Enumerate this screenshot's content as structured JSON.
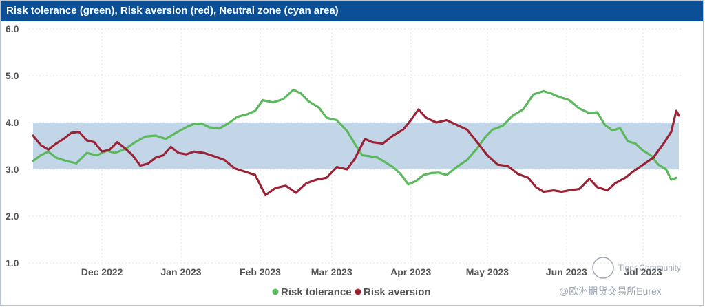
{
  "chart_data": {
    "type": "line",
    "title": "Risk tolerance (green), Risk aversion (red), Neutral zone (cyan area)",
    "xlabel": "",
    "ylabel": "",
    "ylim": [
      1.0,
      6.0
    ],
    "yticks": [
      "1.0",
      "2.0",
      "3.0",
      "4.0",
      "5.0",
      "6.0"
    ],
    "x_range_days": [
      0,
      253
    ],
    "xticks": [
      {
        "label": "Dec 2022",
        "day": 27
      },
      {
        "label": "Jan 2023",
        "day": 58
      },
      {
        "label": "Feb 2023",
        "day": 89
      },
      {
        "label": "Mar 2023",
        "day": 117
      },
      {
        "label": "Apr 2023",
        "day": 148
      },
      {
        "label": "May 2023",
        "day": 178
      },
      {
        "label": "Jun 2023",
        "day": 209
      },
      {
        "label": "Jul 2023",
        "day": 239
      }
    ],
    "neutral_zone": {
      "low": 3.0,
      "high": 4.0,
      "color": "#c2d6e8"
    },
    "series": [
      {
        "name": "Risk tolerance",
        "color": "#5cb85c",
        "points": [
          [
            0,
            3.18
          ],
          [
            3,
            3.3
          ],
          [
            6,
            3.38
          ],
          [
            9,
            3.25
          ],
          [
            13,
            3.18
          ],
          [
            17,
            3.13
          ],
          [
            21,
            3.35
          ],
          [
            25,
            3.3
          ],
          [
            29,
            3.4
          ],
          [
            32,
            3.35
          ],
          [
            36,
            3.43
          ],
          [
            40,
            3.58
          ],
          [
            44,
            3.7
          ],
          [
            48,
            3.72
          ],
          [
            52,
            3.65
          ],
          [
            56,
            3.78
          ],
          [
            60,
            3.9
          ],
          [
            63,
            3.97
          ],
          [
            66,
            3.98
          ],
          [
            69,
            3.9
          ],
          [
            73,
            3.87
          ],
          [
            77,
            4.0
          ],
          [
            80,
            4.12
          ],
          [
            84,
            4.18
          ],
          [
            87,
            4.25
          ],
          [
            90,
            4.48
          ],
          [
            94,
            4.43
          ],
          [
            98,
            4.5
          ],
          [
            102,
            4.7
          ],
          [
            105,
            4.62
          ],
          [
            108,
            4.45
          ],
          [
            112,
            4.32
          ],
          [
            115,
            4.1
          ],
          [
            119,
            4.05
          ],
          [
            123,
            3.82
          ],
          [
            126,
            3.55
          ],
          [
            129,
            3.3
          ],
          [
            132,
            3.28
          ],
          [
            135,
            3.25
          ],
          [
            138,
            3.15
          ],
          [
            141,
            3.05
          ],
          [
            144,
            2.9
          ],
          [
            147,
            2.68
          ],
          [
            150,
            2.75
          ],
          [
            153,
            2.88
          ],
          [
            156,
            2.92
          ],
          [
            159,
            2.93
          ],
          [
            162,
            2.88
          ],
          [
            166,
            3.05
          ],
          [
            170,
            3.2
          ],
          [
            174,
            3.45
          ],
          [
            177,
            3.68
          ],
          [
            180,
            3.85
          ],
          [
            184,
            3.93
          ],
          [
            188,
            4.15
          ],
          [
            192,
            4.28
          ],
          [
            196,
            4.6
          ],
          [
            200,
            4.67
          ],
          [
            203,
            4.62
          ],
          [
            206,
            4.55
          ],
          [
            210,
            4.48
          ],
          [
            214,
            4.3
          ],
          [
            218,
            4.2
          ],
          [
            221,
            4.22
          ],
          [
            224,
            3.95
          ],
          [
            227,
            3.83
          ],
          [
            230,
            3.88
          ],
          [
            233,
            3.6
          ],
          [
            236,
            3.55
          ],
          [
            239,
            3.4
          ],
          [
            242,
            3.3
          ],
          [
            245,
            3.1
          ],
          [
            248,
            3.0
          ],
          [
            250,
            2.78
          ],
          [
            252,
            2.82
          ]
        ]
      },
      {
        "name": "Risk aversion",
        "color": "#9b2335",
        "points": [
          [
            0,
            3.72
          ],
          [
            3,
            3.52
          ],
          [
            6,
            3.42
          ],
          [
            9,
            3.55
          ],
          [
            12,
            3.65
          ],
          [
            15,
            3.78
          ],
          [
            18,
            3.8
          ],
          [
            21,
            3.62
          ],
          [
            24,
            3.58
          ],
          [
            27,
            3.38
          ],
          [
            30,
            3.42
          ],
          [
            33,
            3.58
          ],
          [
            36,
            3.45
          ],
          [
            39,
            3.3
          ],
          [
            42,
            3.08
          ],
          [
            45,
            3.12
          ],
          [
            48,
            3.25
          ],
          [
            51,
            3.3
          ],
          [
            54,
            3.48
          ],
          [
            57,
            3.35
          ],
          [
            60,
            3.32
          ],
          [
            63,
            3.38
          ],
          [
            67,
            3.35
          ],
          [
            71,
            3.28
          ],
          [
            75,
            3.2
          ],
          [
            79,
            3.02
          ],
          [
            83,
            2.95
          ],
          [
            87,
            2.88
          ],
          [
            91,
            2.45
          ],
          [
            95,
            2.6
          ],
          [
            99,
            2.65
          ],
          [
            103,
            2.5
          ],
          [
            107,
            2.7
          ],
          [
            111,
            2.78
          ],
          [
            115,
            2.82
          ],
          [
            119,
            3.05
          ],
          [
            123,
            3.0
          ],
          [
            126,
            3.22
          ],
          [
            130,
            3.65
          ],
          [
            133,
            3.58
          ],
          [
            137,
            3.55
          ],
          [
            141,
            3.72
          ],
          [
            145,
            3.85
          ],
          [
            148,
            4.05
          ],
          [
            151,
            4.28
          ],
          [
            154,
            4.1
          ],
          [
            158,
            4.0
          ],
          [
            162,
            4.05
          ],
          [
            166,
            3.95
          ],
          [
            170,
            3.85
          ],
          [
            174,
            3.58
          ],
          [
            178,
            3.3
          ],
          [
            182,
            3.1
          ],
          [
            186,
            3.07
          ],
          [
            190,
            2.9
          ],
          [
            194,
            2.82
          ],
          [
            197,
            2.62
          ],
          [
            200,
            2.52
          ],
          [
            204,
            2.55
          ],
          [
            207,
            2.52
          ],
          [
            210,
            2.55
          ],
          [
            214,
            2.58
          ],
          [
            218,
            2.8
          ],
          [
            221,
            2.62
          ],
          [
            225,
            2.55
          ],
          [
            228,
            2.7
          ],
          [
            232,
            2.82
          ],
          [
            235,
            2.95
          ],
          [
            239,
            3.1
          ],
          [
            243,
            3.25
          ],
          [
            247,
            3.55
          ],
          [
            250,
            3.8
          ],
          [
            252,
            4.25
          ],
          [
            253,
            4.15
          ]
        ]
      }
    ],
    "legend_position": "bottom-center"
  },
  "watermark": {
    "logo_text": "Tiger Community",
    "source_text": "@欧洲期货交易所Eurex"
  }
}
